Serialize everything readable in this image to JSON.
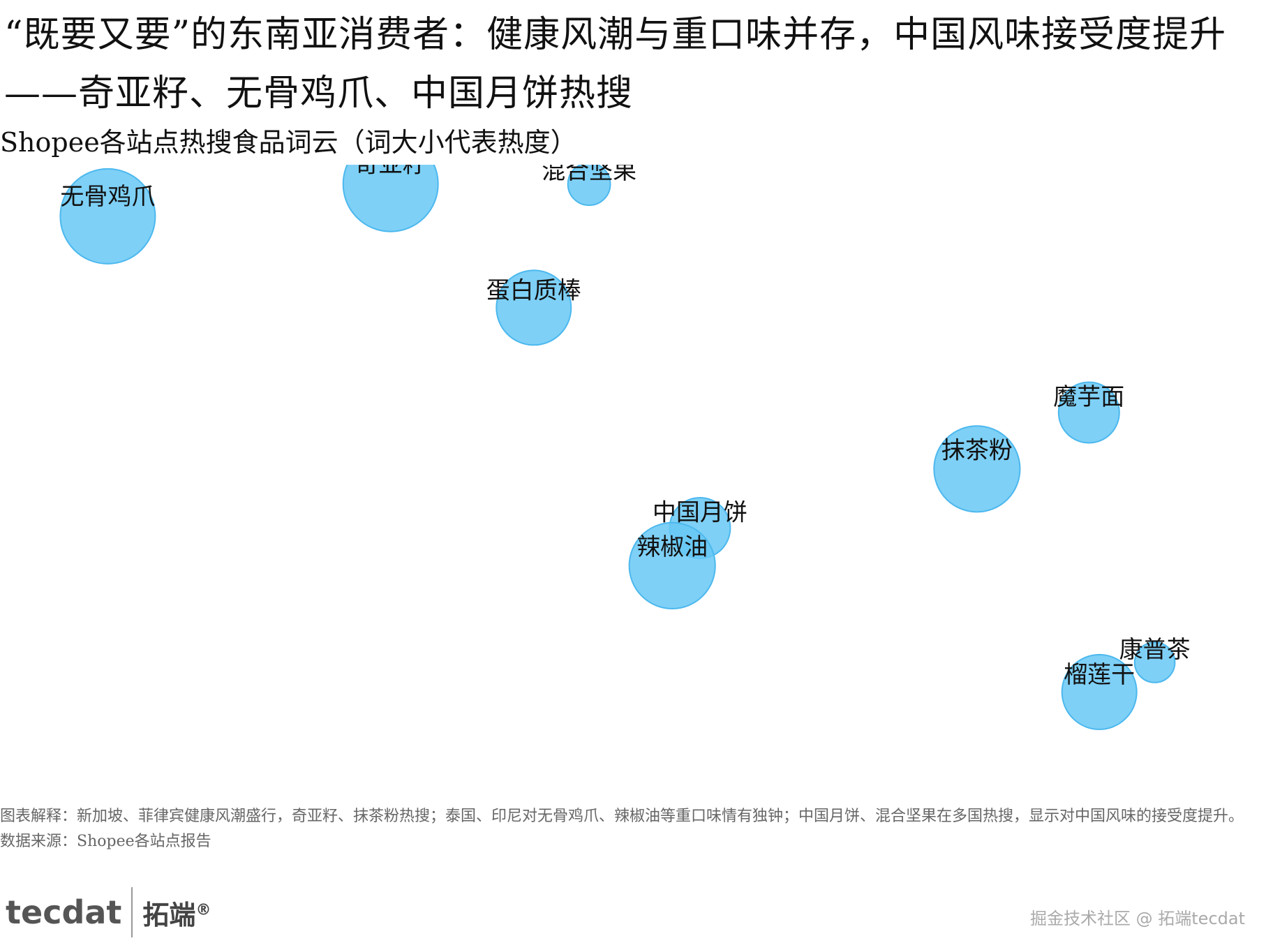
{
  "header": {
    "title": "“既要又要”的东南亚消费者：健康风潮与重口味并存，中国风味接受度提升——奇亚籽、无骨鸡爪、中国月饼热搜",
    "subtitle": "Shopee各站点热搜食品词云（词大小代表热度）"
  },
  "chart_data": {
    "type": "scatter",
    "style": "word-bubble",
    "title": "Shopee各站点热搜食品词云（词大小代表热度）",
    "xlim": [
      0,
      100
    ],
    "ylim": [
      0,
      100
    ],
    "grid": false,
    "legend": "none",
    "bubble_color": "#67c8f4",
    "points": [
      {
        "label": "无骨鸡爪",
        "x": 4.5,
        "y": 93.0,
        "heat": 100
      },
      {
        "label": "奇亚籽",
        "x": 29.0,
        "y": 99.0,
        "heat": 100
      },
      {
        "label": "混合坚果",
        "x": 46.2,
        "y": 99.0,
        "heat": 20
      },
      {
        "label": "蛋白质棒",
        "x": 41.4,
        "y": 76.0,
        "heat": 62
      },
      {
        "label": "魔芋面",
        "x": 89.5,
        "y": 56.5,
        "heat": 41
      },
      {
        "label": "抹茶粉",
        "x": 79.8,
        "y": 46.0,
        "heat": 82
      },
      {
        "label": "中国月饼",
        "x": 55.8,
        "y": 35.0,
        "heat": 41
      },
      {
        "label": "辣椒油",
        "x": 53.4,
        "y": 28.0,
        "heat": 82
      },
      {
        "label": "康普茶",
        "x": 95.2,
        "y": 10.0,
        "heat": 18
      },
      {
        "label": "榴莲干",
        "x": 90.4,
        "y": 4.5,
        "heat": 62
      }
    ]
  },
  "footer": {
    "note": "图表解释：新加坡、菲律宾健康风潮盛行，奇亚籽、抹茶粉热搜；泰国、印尼对无骨鸡爪、辣椒油等重口味情有独钟；中国月饼、混合坚果在多国热搜，显示对中国风味的接受度提升。",
    "source": "数据来源：Shopee各站点报告"
  },
  "branding": {
    "logo_text": "tecdat",
    "logo_cn": "拓端",
    "logo_mark": "®",
    "watermark": "掘金技术社区 @ 拓端tecdat"
  }
}
